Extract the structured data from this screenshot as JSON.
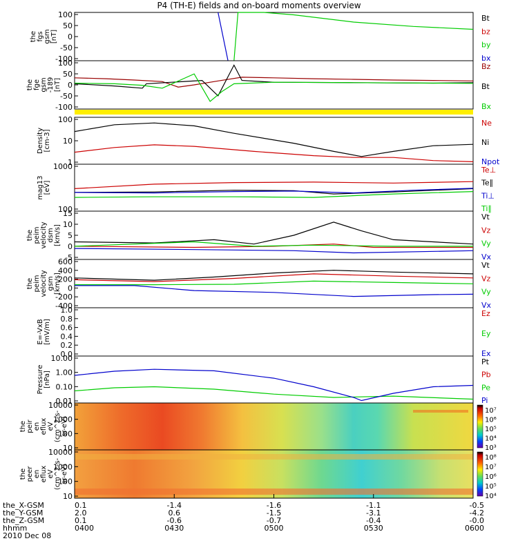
{
  "title": "P4 (TH-E) fields and on-board moments overview",
  "colors": {
    "black": "#000000",
    "red": "#cc0000",
    "green": "#00cc00",
    "blue": "#0000cc",
    "darkred": "#990000",
    "yellow": "#ffee00"
  },
  "chart_data": [
    {
      "type": "line",
      "id": "fgs",
      "ylabel": [
        "the",
        "fgs",
        "gsm",
        "[nT]"
      ],
      "yticks": [
        "100",
        "50",
        "0",
        "-50",
        "-100"
      ],
      "ylim": [
        -100,
        100
      ],
      "series": [
        {
          "name": "Bt",
          "color": "#000000",
          "values": []
        },
        {
          "name": "bz",
          "color": "#cc0000",
          "values": []
        },
        {
          "name": "by",
          "color": "#00cc00",
          "values": [
            [
              0.4,
              -100
            ],
            [
              0.41,
              100
            ],
            [
              0.475,
              100
            ],
            [
              0.55,
              90
            ],
            [
              0.7,
              60
            ],
            [
              0.85,
              42
            ],
            [
              1.0,
              30
            ]
          ]
        },
        {
          "name": "bx",
          "color": "#0000cc",
          "values": [
            [
              0.36,
              100
            ],
            [
              0.385,
              -100
            ]
          ]
        }
      ]
    },
    {
      "type": "line",
      "id": "fge",
      "ylabel": [
        "the",
        "fge",
        "gsm",
        "-189",
        "[nT]"
      ],
      "yticks": [
        "100",
        "50",
        "0",
        "-50",
        "-100"
      ],
      "ylim": [
        -120,
        100
      ],
      "series": [
        {
          "name": "Bz",
          "color": "#990000",
          "values": [
            [
              0.0,
              22
            ],
            [
              0.08,
              18
            ],
            [
              0.15,
              12
            ],
            [
              0.22,
              5
            ],
            [
              0.26,
              -20
            ],
            [
              0.3,
              -10
            ],
            [
              0.36,
              8
            ],
            [
              0.42,
              25
            ],
            [
              0.5,
              22
            ],
            [
              0.6,
              18
            ],
            [
              0.7,
              15
            ],
            [
              0.8,
              12
            ],
            [
              0.9,
              10
            ],
            [
              1.0,
              8
            ]
          ]
        },
        {
          "name": "Bt",
          "color": "#000000",
          "values": [
            [
              0.0,
              -5
            ],
            [
              0.1,
              -15
            ],
            [
              0.17,
              -25
            ],
            [
              0.18,
              -5
            ],
            [
              0.32,
              10
            ],
            [
              0.36,
              -60
            ],
            [
              0.4,
              80
            ],
            [
              0.42,
              10
            ],
            [
              0.5,
              2
            ],
            [
              0.7,
              0
            ],
            [
              0.9,
              -2
            ],
            [
              1.0,
              0
            ]
          ]
        },
        {
          "name": "Bx",
          "color": "#00cc00",
          "values": [
            [
              0.0,
              -2
            ],
            [
              0.1,
              -5
            ],
            [
              0.17,
              -12
            ],
            [
              0.22,
              -25
            ],
            [
              0.3,
              40
            ],
            [
              0.34,
              -85
            ],
            [
              0.37,
              -40
            ],
            [
              0.4,
              -5
            ],
            [
              0.5,
              2
            ],
            [
              0.7,
              0
            ],
            [
              1.0,
              -3
            ]
          ]
        }
      ]
    },
    {
      "type": "line",
      "id": "density",
      "ylabel": [
        "Density",
        "[cm-3]"
      ],
      "yticks": [
        "100",
        "10",
        "1"
      ],
      "yscale": "log",
      "ylim": [
        0.1,
        200
      ],
      "series": [
        {
          "name": "Ne",
          "color": "#cc0000",
          "values": [
            [
              0.0,
              0.7
            ],
            [
              0.1,
              1.5
            ],
            [
              0.2,
              2.3
            ],
            [
              0.3,
              1.8
            ],
            [
              0.45,
              0.8
            ],
            [
              0.6,
              0.4
            ],
            [
              0.7,
              0.3
            ],
            [
              0.8,
              0.3
            ],
            [
              0.9,
              0.18
            ],
            [
              1.0,
              0.15
            ]
          ]
        },
        {
          "name": "Ni",
          "color": "#000000",
          "values": [
            [
              0.0,
              20
            ],
            [
              0.1,
              60
            ],
            [
              0.2,
              80
            ],
            [
              0.3,
              50
            ],
            [
              0.4,
              15
            ],
            [
              0.55,
              3
            ],
            [
              0.65,
              0.8
            ],
            [
              0.72,
              0.35
            ],
            [
              0.8,
              0.8
            ],
            [
              0.9,
              2
            ],
            [
              1.0,
              2.5
            ]
          ]
        },
        {
          "name": "Npot",
          "color": "#0000cc",
          "values": []
        }
      ]
    },
    {
      "type": "line",
      "id": "temp",
      "ylabel": [
        "mag13",
        "[eV]"
      ],
      "yticks": [
        "1000",
        "100"
      ],
      "yscale": "log",
      "ylim": [
        100,
        2000
      ],
      "series": [
        {
          "name": "Te⊥",
          "color": "#cc0000",
          "values": [
            [
              0.0,
              420
            ],
            [
              0.2,
              560
            ],
            [
              0.4,
              620
            ],
            [
              0.6,
              640
            ],
            [
              0.8,
              600
            ],
            [
              1.0,
              660
            ]
          ]
        },
        {
          "name": "Te∥",
          "color": "#000000",
          "values": [
            [
              0.0,
              330
            ],
            [
              0.2,
              340
            ],
            [
              0.4,
              380
            ],
            [
              0.55,
              370
            ],
            [
              0.65,
              300
            ],
            [
              0.8,
              340
            ],
            [
              1.0,
              420
            ]
          ]
        },
        {
          "name": "Ti⊥",
          "color": "#0000cc",
          "values": [
            [
              0.0,
              330
            ],
            [
              0.2,
              320
            ],
            [
              0.4,
              350
            ],
            [
              0.55,
              360
            ],
            [
              0.7,
              320
            ],
            [
              0.85,
              380
            ],
            [
              1.0,
              430
            ]
          ]
        },
        {
          "name": "Ti∥",
          "color": "#00cc00",
          "values": [
            [
              0.0,
              240
            ],
            [
              0.2,
              250
            ],
            [
              0.4,
              250
            ],
            [
              0.6,
              240
            ],
            [
              0.8,
              300
            ],
            [
              1.0,
              350
            ]
          ]
        }
      ]
    },
    {
      "type": "line",
      "id": "velocity1",
      "ylabel": [
        "the",
        "peim",
        "velocity",
        "dsm",
        "[km/s]"
      ],
      "yticks": [
        "15",
        "10",
        "5",
        "0",
        "-5"
      ],
      "ylim": [
        -5,
        17
      ],
      "series": [
        {
          "name": "Vt",
          "color": "#000000",
          "values": [
            [
              0.0,
              3
            ],
            [
              0.2,
              2.5
            ],
            [
              0.35,
              4
            ],
            [
              0.45,
              2
            ],
            [
              0.55,
              6
            ],
            [
              0.65,
              12
            ],
            [
              0.72,
              8
            ],
            [
              0.8,
              4
            ],
            [
              1.0,
              2
            ]
          ]
        },
        {
          "name": "Vz",
          "color": "#cc0000",
          "values": [
            [
              0.0,
              1
            ],
            [
              0.3,
              0.5
            ],
            [
              0.5,
              1
            ],
            [
              0.65,
              2
            ],
            [
              0.75,
              0.5
            ],
            [
              1.0,
              0.5
            ]
          ]
        },
        {
          "name": "Vy",
          "color": "#00cc00",
          "values": [
            [
              0.0,
              1
            ],
            [
              0.3,
              3
            ],
            [
              0.45,
              1
            ],
            [
              0.6,
              1.5
            ],
            [
              0.8,
              1
            ],
            [
              1.0,
              1
            ]
          ]
        },
        {
          "name": "Vx",
          "color": "#0000cc",
          "values": [
            [
              0.0,
              0
            ],
            [
              0.3,
              -0.5
            ],
            [
              0.55,
              -1
            ],
            [
              0.7,
              -2
            ],
            [
              1.0,
              -1
            ]
          ]
        }
      ]
    },
    {
      "type": "line",
      "id": "velocity2",
      "ylabel": [
        "the",
        "peim",
        "velocity",
        "gsm",
        "[km/s]"
      ],
      "yticks": [
        "600",
        "400",
        "200",
        "0",
        "-200",
        "-400"
      ],
      "ylim": [
        -450,
        620
      ],
      "series": [
        {
          "name": "Vt",
          "color": "#000000",
          "values": [
            [
              0.0,
              210
            ],
            [
              0.2,
              160
            ],
            [
              0.35,
              230
            ],
            [
              0.5,
              320
            ],
            [
              0.65,
              380
            ],
            [
              0.8,
              340
            ],
            [
              1.0,
              300
            ]
          ]
        },
        {
          "name": "Vz",
          "color": "#cc0000",
          "values": [
            [
              0.0,
              170
            ],
            [
              0.2,
              130
            ],
            [
              0.4,
              200
            ],
            [
              0.6,
              300
            ],
            [
              0.8,
              250
            ],
            [
              1.0,
              210
            ]
          ]
        },
        {
          "name": "Vy",
          "color": "#00cc00",
          "values": [
            [
              0.0,
              60
            ],
            [
              0.2,
              60
            ],
            [
              0.4,
              70
            ],
            [
              0.6,
              140
            ],
            [
              0.8,
              110
            ],
            [
              1.0,
              80
            ]
          ]
        },
        {
          "name": "Vx",
          "color": "#0000cc",
          "values": [
            [
              0.0,
              40
            ],
            [
              0.15,
              40
            ],
            [
              0.3,
              -70
            ],
            [
              0.5,
              -110
            ],
            [
              0.7,
              -200
            ],
            [
              0.9,
              -160
            ],
            [
              1.0,
              -150
            ]
          ]
        }
      ]
    },
    {
      "type": "line",
      "id": "efield",
      "ylabel": [
        "E=-VxB",
        "[mV/m]"
      ],
      "yticks": [
        "1.0",
        "0.8",
        "0.6",
        "0.4",
        "0.2",
        "0.0"
      ],
      "ylim": [
        0,
        1
      ],
      "series": [
        {
          "name": "Ez",
          "color": "#cc0000",
          "values": []
        },
        {
          "name": "Ey",
          "color": "#00cc00",
          "values": []
        },
        {
          "name": "Ex",
          "color": "#0000cc",
          "values": []
        }
      ]
    },
    {
      "type": "line",
      "id": "pressure",
      "ylabel": [
        "Pressure",
        "[nPa]"
      ],
      "yticks": [
        "10.00",
        "1.00",
        "0.10",
        "0.01"
      ],
      "yscale": "log",
      "ylim": [
        0.008,
        20
      ],
      "series": [
        {
          "name": "Pt",
          "color": "#000000",
          "values": []
        },
        {
          "name": "Pb",
          "color": "#cc0000",
          "values": []
        },
        {
          "name": "Pe",
          "color": "#00cc00",
          "values": [
            [
              0.0,
              0.06
            ],
            [
              0.1,
              0.1
            ],
            [
              0.2,
              0.12
            ],
            [
              0.35,
              0.08
            ],
            [
              0.5,
              0.035
            ],
            [
              0.65,
              0.02
            ],
            [
              0.8,
              0.025
            ],
            [
              1.0,
              0.015
            ]
          ]
        },
        {
          "name": "Pi",
          "color": "#0000cc",
          "values": [
            [
              0.0,
              0.8
            ],
            [
              0.1,
              1.6
            ],
            [
              0.2,
              2.2
            ],
            [
              0.35,
              1.7
            ],
            [
              0.5,
              0.5
            ],
            [
              0.6,
              0.12
            ],
            [
              0.7,
              0.02
            ],
            [
              0.72,
              0.012
            ],
            [
              0.8,
              0.04
            ],
            [
              0.9,
              0.12
            ],
            [
              1.0,
              0.15
            ]
          ]
        }
      ]
    },
    {
      "type": "heatmap",
      "id": "peir",
      "ylabel": [
        "the",
        "peir",
        "en",
        "eflux",
        "eV",
        "(cm^2-s-",
        "sr-eV)"
      ],
      "yticks": [
        "10000",
        "1000",
        "100",
        "10"
      ],
      "colorbar_ticks": [
        "10⁷",
        "10⁶",
        "10⁵",
        "10⁴",
        "10³"
      ]
    },
    {
      "type": "heatmap",
      "id": "peer",
      "ylabel": [
        "the",
        "peer",
        "en",
        "eflux",
        "eV",
        "(cm^2-s-",
        "sr-eV)"
      ],
      "yticks": [
        "10000",
        "1000",
        "100",
        "10"
      ],
      "colorbar_ticks": [
        "10⁸",
        "10⁷",
        "10⁶",
        "10⁵",
        "10⁴"
      ]
    }
  ],
  "footer": {
    "rows": [
      {
        "label": "the_X-GSM",
        "values": [
          "0.1",
          "-1.4",
          "-1.6",
          "-1.1",
          "-0.5"
        ]
      },
      {
        "label": "the_Y-GSM",
        "values": [
          "2.0",
          "0.6",
          "-1.5",
          "-3.1",
          "-4.2"
        ]
      },
      {
        "label": "the_Z-GSM",
        "values": [
          "0.1",
          "-0.6",
          "-0.7",
          "-0.4",
          "-0.0"
        ]
      },
      {
        "label": "hhmm",
        "values": [
          "0400",
          "0430",
          "0500",
          "0530",
          "0600"
        ]
      }
    ],
    "date": "2010 Dec 08"
  }
}
